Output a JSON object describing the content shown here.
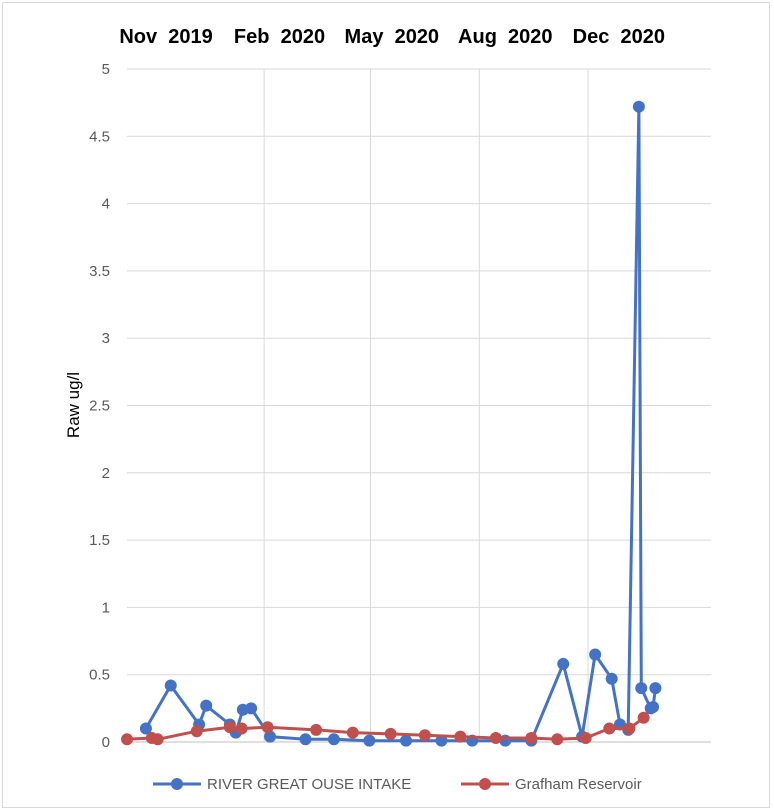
{
  "chart_data": {
    "type": "line",
    "title": "",
    "xlabel": "",
    "ylabel": "Raw ug/l",
    "ylim": [
      0,
      5
    ],
    "yticks": [
      "0",
      "0.5",
      "1",
      "1.5",
      "2",
      "2.5",
      "3",
      "3.5",
      "4",
      "4.5",
      "5"
    ],
    "x_axis_type": "date",
    "xlim": [
      "2019-10-08",
      "2021-02-13"
    ],
    "top_labels": [
      {
        "text": "Nov  2019",
        "date": "2019-11-10"
      },
      {
        "text": "Feb  2020",
        "date": "2020-02-14"
      },
      {
        "text": "May  2020",
        "date": "2020-05-19"
      },
      {
        "text": "Aug  2020",
        "date": "2020-08-23"
      },
      {
        "text": "Dec  2020",
        "date": "2020-11-27"
      }
    ],
    "vertical_gridlines": [
      "2020-02-01",
      "2020-05-01",
      "2020-08-01",
      "2020-11-01"
    ],
    "grid": true,
    "legend_position": "bottom",
    "series": [
      {
        "name": "RIVER GREAT OUSE INTAKE",
        "color": "#4472c4",
        "points": [
          {
            "x": "2019-10-24",
            "y": 0.1
          },
          {
            "x": "2019-11-14",
            "y": 0.42
          },
          {
            "x": "2019-12-08",
            "y": 0.13
          },
          {
            "x": "2019-12-14",
            "y": 0.27
          },
          {
            "x": "2020-01-03",
            "y": 0.13
          },
          {
            "x": "2020-01-08",
            "y": 0.07
          },
          {
            "x": "2020-01-14",
            "y": 0.24
          },
          {
            "x": "2020-01-21",
            "y": 0.25
          },
          {
            "x": "2020-02-06",
            "y": 0.04
          },
          {
            "x": "2020-03-07",
            "y": 0.02
          },
          {
            "x": "2020-03-31",
            "y": 0.02
          },
          {
            "x": "2020-04-30",
            "y": 0.01
          },
          {
            "x": "2020-05-31",
            "y": 0.01
          },
          {
            "x": "2020-06-30",
            "y": 0.01
          },
          {
            "x": "2020-07-26",
            "y": 0.01
          },
          {
            "x": "2020-08-23",
            "y": 0.01
          },
          {
            "x": "2020-09-14",
            "y": 0.01
          },
          {
            "x": "2020-10-11",
            "y": 0.58
          },
          {
            "x": "2020-10-27",
            "y": 0.04
          },
          {
            "x": "2020-11-07",
            "y": 0.65
          },
          {
            "x": "2020-11-21",
            "y": 0.47
          },
          {
            "x": "2020-11-28",
            "y": 0.13
          },
          {
            "x": "2020-12-05",
            "y": 0.09
          },
          {
            "x": "2020-12-14",
            "y": 4.72
          },
          {
            "x": "2020-12-16",
            "y": 0.4
          },
          {
            "x": "2020-12-24",
            "y": 0.25
          },
          {
            "x": "2020-12-26",
            "y": 0.26
          },
          {
            "x": "2020-12-28",
            "y": 0.4
          }
        ]
      },
      {
        "name": "Grafham Reservoir",
        "color": "#c0504d",
        "points": [
          {
            "x": "2019-10-08",
            "y": 0.02
          },
          {
            "x": "2019-10-29",
            "y": 0.03
          },
          {
            "x": "2019-11-03",
            "y": 0.02
          },
          {
            "x": "2019-12-06",
            "y": 0.08
          },
          {
            "x": "2020-01-03",
            "y": 0.11
          },
          {
            "x": "2020-01-13",
            "y": 0.1
          },
          {
            "x": "2020-02-04",
            "y": 0.11
          },
          {
            "x": "2020-03-16",
            "y": 0.09
          },
          {
            "x": "2020-04-16",
            "y": 0.07
          },
          {
            "x": "2020-05-18",
            "y": 0.06
          },
          {
            "x": "2020-06-16",
            "y": 0.05
          },
          {
            "x": "2020-07-16",
            "y": 0.04
          },
          {
            "x": "2020-08-15",
            "y": 0.03
          },
          {
            "x": "2020-09-14",
            "y": 0.03
          },
          {
            "x": "2020-10-06",
            "y": 0.02
          },
          {
            "x": "2020-10-30",
            "y": 0.03
          },
          {
            "x": "2020-11-19",
            "y": 0.1
          },
          {
            "x": "2020-12-06",
            "y": 0.1
          },
          {
            "x": "2020-12-18",
            "y": 0.18
          }
        ]
      }
    ]
  }
}
